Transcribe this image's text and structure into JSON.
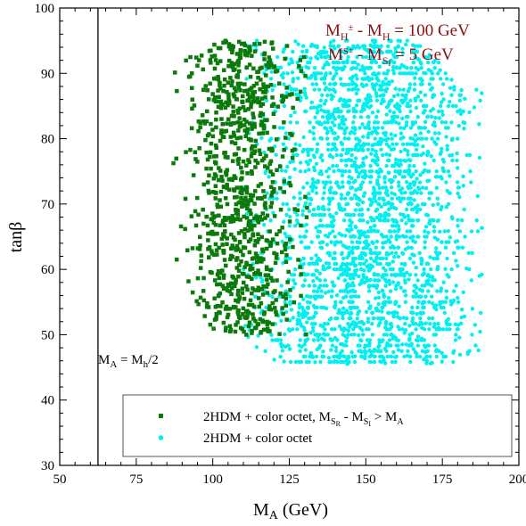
{
  "chart_data": {
    "type": "scatter",
    "title": "",
    "xlabel": "M_A (GeV)",
    "ylabel": "tanβ",
    "xlim": [
      50,
      200
    ],
    "ylim": [
      30,
      100
    ],
    "xticks": [
      50,
      75,
      100,
      125,
      150,
      175,
      200
    ],
    "yticks": [
      30,
      40,
      50,
      60,
      70,
      80,
      90,
      100
    ],
    "grid": false,
    "legend_position": "bottom-right",
    "annotations": {
      "mass_split_1": {
        "base": "M",
        "sub1": "H",
        "sup1": "±",
        "mid": " - M",
        "sub2": "H",
        "tail": " = 100 GeV"
      },
      "mass_split_2": {
        "base": "M",
        "sup1": "S",
        "sub1": "±",
        "mid": " - M",
        "sub2": "S",
        "sub2b": "I",
        "tail": " = 5 GeV"
      },
      "vertical_line": {
        "x": 62.5,
        "label_base": "M",
        "label_sub1": "A",
        "label_mid": " = M",
        "label_sub2": "h",
        "label_tail": "/2"
      }
    },
    "series": [
      {
        "name": "2HDM + color octet, M_SR - M_SI > M_A",
        "legend_label": {
          "base": "2HDM + color octet, M",
          "sub1": "S",
          "sub1b": "R",
          "mid": " - M",
          "sub2": "S",
          "sub2b": "I",
          "tail": " > M",
          "sub3": "A"
        },
        "color": "#0a7a0a",
        "marker": "square",
        "region": {
          "x_range": [
            83,
            130
          ],
          "y_range": [
            50,
            95
          ],
          "density_center_x": 110
        }
      },
      {
        "name": "2HDM + color octet",
        "legend_label": {
          "base": "2HDM + color octet"
        },
        "color": "#00f0f0",
        "marker": "circle",
        "region": {
          "x_range": [
            110,
            188
          ],
          "y_range": [
            45.5,
            95
          ],
          "density_center_x": 150
        }
      }
    ]
  }
}
